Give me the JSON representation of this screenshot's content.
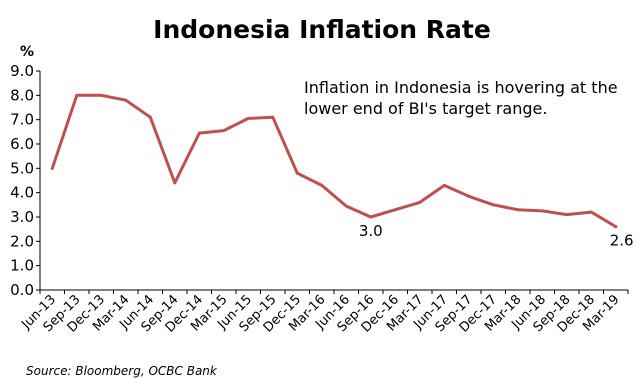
{
  "chart_data": {
    "type": "line",
    "title": "Indonesia Inflation Rate",
    "y_unit_label": "%",
    "ylim": [
      0,
      9
    ],
    "y_ticks": [
      "0.0",
      "1.0",
      "2.0",
      "3.0",
      "4.0",
      "5.0",
      "6.0",
      "7.0",
      "8.0",
      "9.0"
    ],
    "grid": false,
    "categories": [
      "Jun-13",
      "Sep-13",
      "Dec-13",
      "Mar-14",
      "Jun-14",
      "Sep-14",
      "Dec-14",
      "Mar-15",
      "Jun-15",
      "Sep-15",
      "Dec-15",
      "Mar-16",
      "Jun-16",
      "Sep-16",
      "Dec-16",
      "Mar-17",
      "Jun-17",
      "Sep-17",
      "Dec-17",
      "Mar-18",
      "Jun-18",
      "Sep-18",
      "Dec-18",
      "Mar-19"
    ],
    "series": [
      {
        "color": "#c0504d",
        "values": [
          5.0,
          8.0,
          8.0,
          7.8,
          7.1,
          4.4,
          6.45,
          6.55,
          7.05,
          7.1,
          4.8,
          4.3,
          3.45,
          3.0,
          3.3,
          3.6,
          4.3,
          3.85,
          3.5,
          3.3,
          3.25,
          3.1,
          3.2,
          2.6
        ]
      }
    ],
    "annotation": {
      "lines": [
        "Inflation in Indonesia is hovering at the",
        "lower end of BI's target range."
      ]
    },
    "data_labels": [
      {
        "category": "Sep-16",
        "text": "3.0"
      },
      {
        "category": "Mar-19",
        "text": "2.6"
      }
    ],
    "source": "Source: Bloomberg, OCBC Bank"
  }
}
